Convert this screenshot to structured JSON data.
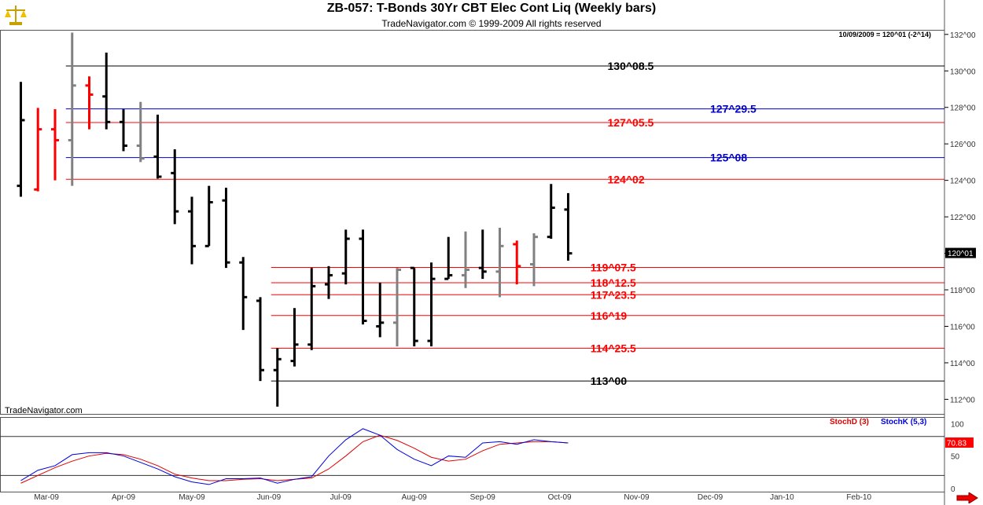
{
  "header": {
    "title": "ZB-057:  T-Bonds 30Yr CBT Elec Cont Liq  (Weekly bars)",
    "subtitle": "TradeNavigator.com © 1999-2009 All rights reserved",
    "quote": "10/09/2009 = 120^01 (-2^14)",
    "watermark": "TradeNavigator.com",
    "last_price_tag": "120^01",
    "stoch_value_tag": "70.83"
  },
  "legend": {
    "stoch_d": "StochD (3)",
    "stoch_k": "StochK (5,3)"
  },
  "colors": {
    "up": "#000000",
    "down": "#ff0000",
    "neutral": "#808080",
    "red_level": "#ff0000",
    "blue_level": "#0000c8",
    "black_level": "#000000",
    "stoch_d": "#e00000",
    "stoch_k": "#0000dd",
    "price_tag_bg": "#000000",
    "stoch_tag_bg": "#ff0000"
  },
  "chart_data": {
    "type": "ohlc",
    "price_axis": {
      "min": 111.2,
      "max": 132.25,
      "ticks": [
        "132^00",
        "130^00",
        "128^00",
        "126^00",
        "124^00",
        "122^00",
        "120^00",
        "118^00",
        "116^00",
        "114^00",
        "112^00"
      ],
      "tick_values": [
        132,
        130,
        128,
        126,
        124,
        122,
        120,
        118,
        116,
        114,
        112
      ]
    },
    "x_labels": [
      "Mar-09",
      "Apr-09",
      "May-09",
      "Jun-09",
      "Jul-09",
      "Aug-09",
      "Sep-09",
      "Oct-09",
      "Nov-09",
      "Dec-09",
      "Jan-10",
      "Feb-10"
    ],
    "x_label_weeks": [
      1.5,
      6,
      10,
      14.5,
      18.7,
      23,
      27,
      31.5,
      36,
      40.3,
      44.5,
      49
    ],
    "bars": [
      {
        "w": 0,
        "o": 123.7,
        "h": 129.4,
        "l": 123.1,
        "c": 127.3,
        "t": "up"
      },
      {
        "w": 1,
        "o": 123.5,
        "h": 127.97,
        "l": 123.4,
        "c": 126.8,
        "t": "down"
      },
      {
        "w": 2,
        "o": 126.8,
        "h": 127.9,
        "l": 124.0,
        "c": 126.2,
        "t": "down"
      },
      {
        "w": 3,
        "o": 126.2,
        "h": 132.1,
        "l": 123.7,
        "c": 129.2,
        "t": "neutral"
      },
      {
        "w": 4,
        "o": 129.2,
        "h": 129.7,
        "l": 126.8,
        "c": 128.7,
        "t": "down"
      },
      {
        "w": 5,
        "o": 128.6,
        "h": 131.0,
        "l": 126.8,
        "c": 127.2,
        "t": "up"
      },
      {
        "w": 6,
        "o": 127.2,
        "h": 127.9,
        "l": 125.6,
        "c": 125.9,
        "t": "up"
      },
      {
        "w": 7,
        "o": 125.9,
        "h": 128.3,
        "l": 125.0,
        "c": 125.2,
        "t": "neutral"
      },
      {
        "w": 8,
        "o": 125.3,
        "h": 127.6,
        "l": 124.1,
        "c": 124.2,
        "t": "up"
      },
      {
        "w": 9,
        "o": 124.4,
        "h": 125.7,
        "l": 121.6,
        "c": 122.3,
        "t": "up"
      },
      {
        "w": 10,
        "o": 122.3,
        "h": 123.1,
        "l": 119.4,
        "c": 120.4,
        "t": "up"
      },
      {
        "w": 11,
        "o": 120.4,
        "h": 123.7,
        "l": 120.4,
        "c": 122.8,
        "t": "up"
      },
      {
        "w": 12,
        "o": 122.9,
        "h": 123.6,
        "l": 119.2,
        "c": 119.5,
        "t": "up"
      },
      {
        "w": 13,
        "o": 119.5,
        "h": 119.8,
        "l": 115.8,
        "c": 117.6,
        "t": "up"
      },
      {
        "w": 14,
        "o": 117.4,
        "h": 117.6,
        "l": 113.0,
        "c": 113.6,
        "t": "up"
      },
      {
        "w": 15,
        "o": 113.6,
        "h": 114.8,
        "l": 111.6,
        "c": 114.2,
        "t": "up"
      },
      {
        "w": 16,
        "o": 114.1,
        "h": 117.0,
        "l": 113.8,
        "c": 115.0,
        "t": "up"
      },
      {
        "w": 17,
        "o": 115.0,
        "h": 119.2,
        "l": 114.7,
        "c": 118.2,
        "t": "up"
      },
      {
        "w": 18,
        "o": 118.3,
        "h": 119.3,
        "l": 117.5,
        "c": 118.8,
        "t": "up"
      },
      {
        "w": 19,
        "o": 118.9,
        "h": 121.3,
        "l": 118.3,
        "c": 120.8,
        "t": "up"
      },
      {
        "w": 20,
        "o": 120.8,
        "h": 121.3,
        "l": 116.1,
        "c": 116.3,
        "t": "up"
      },
      {
        "w": 21,
        "o": 116.0,
        "h": 118.4,
        "l": 115.4,
        "c": 116.2,
        "t": "up"
      },
      {
        "w": 22,
        "o": 116.2,
        "h": 119.2,
        "l": 114.9,
        "c": 119.1,
        "t": "neutral"
      },
      {
        "w": 23,
        "o": 119.2,
        "h": 119.2,
        "l": 114.9,
        "c": 115.2,
        "t": "up"
      },
      {
        "w": 24,
        "o": 115.2,
        "h": 119.5,
        "l": 114.9,
        "c": 118.6,
        "t": "up"
      },
      {
        "w": 25,
        "o": 118.6,
        "h": 120.9,
        "l": 118.6,
        "c": 118.8,
        "t": "up"
      },
      {
        "w": 26,
        "o": 118.8,
        "h": 121.2,
        "l": 118.1,
        "c": 119.1,
        "t": "neutral"
      },
      {
        "w": 27,
        "o": 119.2,
        "h": 121.3,
        "l": 118.6,
        "c": 119.0,
        "t": "up"
      },
      {
        "w": 28,
        "o": 119.0,
        "h": 121.4,
        "l": 117.6,
        "c": 120.4,
        "t": "neutral"
      },
      {
        "w": 29,
        "o": 120.5,
        "h": 120.7,
        "l": 118.3,
        "c": 119.3,
        "t": "down"
      },
      {
        "w": 30,
        "o": 119.4,
        "h": 121.1,
        "l": 118.2,
        "c": 120.9,
        "t": "neutral"
      },
      {
        "w": 31,
        "o": 120.9,
        "h": 123.8,
        "l": 120.8,
        "c": 122.5,
        "t": "up"
      },
      {
        "w": 32,
        "o": 122.4,
        "h": 123.3,
        "l": 119.6,
        "c": 120.0,
        "t": "up"
      }
    ],
    "levels": [
      {
        "label": "130^08.5",
        "value": 130.27,
        "color": "black",
        "start_week": 3,
        "label_week": 34.3
      },
      {
        "label": "127^29.5",
        "value": 127.92,
        "color": "blue",
        "start_week": 3,
        "label_week": 40.3
      },
      {
        "label": "127^05.5",
        "value": 127.17,
        "color": "red",
        "start_week": 3,
        "label_week": 34.3
      },
      {
        "label": "125^08",
        "value": 125.25,
        "color": "blue",
        "start_week": 3,
        "label_week": 40.3
      },
      {
        "label": "124^02",
        "value": 124.06,
        "color": "red",
        "start_week": 3,
        "label_week": 34.3
      },
      {
        "label": "119^07.5",
        "value": 119.23,
        "color": "red",
        "start_week": 15,
        "label_week": 33.3
      },
      {
        "label": "118^12.5",
        "value": 118.39,
        "color": "red",
        "start_week": 15,
        "label_week": 33.3
      },
      {
        "label": "117^23.5",
        "value": 117.73,
        "color": "red",
        "start_week": 15,
        "label_week": 33.3
      },
      {
        "label": "116^19",
        "value": 116.59,
        "color": "red",
        "start_week": 15,
        "label_week": 33.3
      },
      {
        "label": "114^25.5",
        "value": 114.8,
        "color": "red",
        "start_week": 15,
        "label_week": 33.3
      },
      {
        "label": "113^00",
        "value": 113.0,
        "color": "black",
        "start_week": 15,
        "label_week": 33.3
      }
    ],
    "stoch_axis": {
      "min": -5,
      "max": 110,
      "ticks": [
        "100",
        "50",
        "0"
      ],
      "tick_values": [
        100,
        50,
        0
      ],
      "ref_levels": [
        80,
        20
      ]
    },
    "stoch_k": [
      12,
      28,
      35,
      52,
      55,
      55,
      50,
      40,
      30,
      18,
      10,
      6,
      15,
      15,
      16,
      8,
      14,
      18,
      50,
      75,
      92,
      82,
      60,
      45,
      35,
      50,
      48,
      70,
      72,
      68,
      75,
      72,
      70
    ],
    "stoch_d": [
      8,
      20,
      32,
      42,
      50,
      54,
      52,
      45,
      35,
      22,
      16,
      12,
      12,
      14,
      15,
      12,
      14,
      16,
      30,
      50,
      72,
      82,
      74,
      62,
      48,
      42,
      45,
      58,
      68,
      70,
      72,
      72,
      70
    ]
  }
}
